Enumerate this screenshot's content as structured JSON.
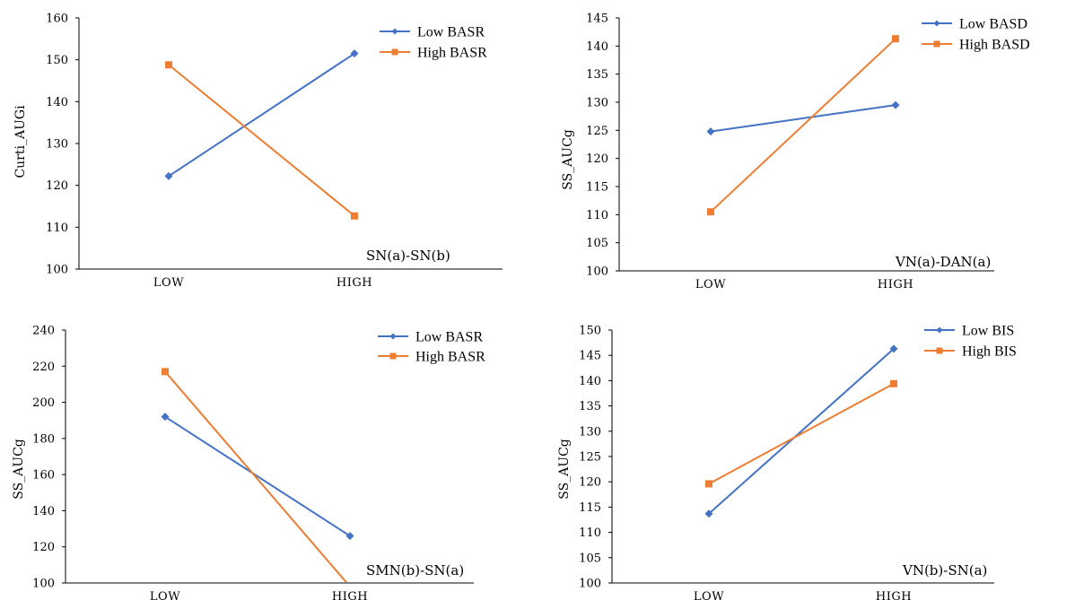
{
  "colors": {
    "low": "#4472C4",
    "high": "#ED7D31"
  },
  "chart_data": [
    {
      "type": "line",
      "ylabel": "Curti_AUGi",
      "annotation": "SN(a)-SN(b)",
      "categories": [
        "LOW",
        "HIGH"
      ],
      "ylim": [
        100,
        160
      ],
      "yticks": [
        100,
        110,
        120,
        130,
        140,
        150,
        160
      ],
      "legend_position": "top-right",
      "series": [
        {
          "name": "Low BASR",
          "values": [
            122.2,
            151.5
          ]
        },
        {
          "name": "High BASR",
          "values": [
            148.8,
            112.7
          ]
        }
      ]
    },
    {
      "type": "line",
      "ylabel": "SS_AUCg",
      "annotation": "VN(a)-DAN(a)",
      "categories": [
        "LOW",
        "HIGH"
      ],
      "ylim": [
        100,
        145
      ],
      "yticks": [
        100,
        105,
        110,
        115,
        120,
        125,
        130,
        135,
        140,
        145
      ],
      "legend_position": "top-right",
      "series": [
        {
          "name": "Low BASD",
          "values": [
            124.8,
            129.5
          ]
        },
        {
          "name": "High BASD",
          "values": [
            110.5,
            141.3
          ]
        }
      ]
    },
    {
      "type": "line",
      "ylabel": "SS_AUCg",
      "annotation": "SMN(b)-SN(a)",
      "categories": [
        "LOW",
        "HIGH"
      ],
      "ylim": [
        100,
        240
      ],
      "yticks": [
        100,
        120,
        140,
        160,
        180,
        200,
        220,
        240
      ],
      "legend_position": "top-right",
      "series": [
        {
          "name": "Low BASR",
          "values": [
            192,
            126
          ]
        },
        {
          "name": "High BASR",
          "values": [
            217,
            98
          ]
        }
      ]
    },
    {
      "type": "line",
      "ylabel": "SS_AUCg",
      "annotation": "VN(b)-SN(a)",
      "categories": [
        "LOW",
        "HIGH"
      ],
      "ylim": [
        100,
        150
      ],
      "yticks": [
        100,
        105,
        110,
        115,
        120,
        125,
        130,
        135,
        140,
        145,
        150
      ],
      "legend_position": "top-right",
      "series": [
        {
          "name": "Low BIS",
          "values": [
            113.7,
            146.3
          ]
        },
        {
          "name": "High BIS",
          "values": [
            119.6,
            139.4
          ]
        }
      ]
    }
  ]
}
